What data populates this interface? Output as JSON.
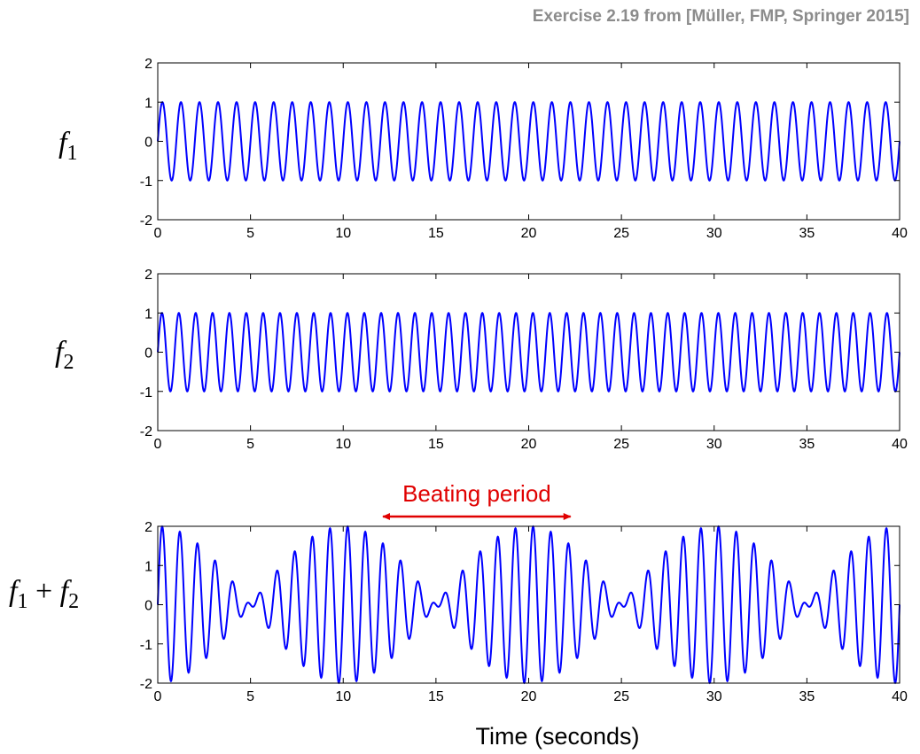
{
  "header": {
    "source": "Exercise 2.19 from [Müller, FMP, Springer 2015]"
  },
  "xlabel": "Time (seconds)",
  "annotation": {
    "text": "Beating period",
    "x_start": 12,
    "x_end": 22.4
  },
  "colors": {
    "line": "#0000ff",
    "annotation": "#e00000"
  },
  "chart_data": [
    {
      "type": "line",
      "name": "f1",
      "label_parts": [
        "f",
        "1"
      ],
      "expr": "sin(2*pi*1.0*t)",
      "frequency": 1.0,
      "amplitude": 1,
      "xlim": [
        0,
        40
      ],
      "ylim": [
        -2,
        2
      ],
      "xticks": [
        0,
        5,
        10,
        15,
        20,
        25,
        30,
        35,
        40
      ],
      "yticks": [
        2,
        1,
        0,
        -1,
        -2
      ],
      "grid": false
    },
    {
      "type": "line",
      "name": "f2",
      "label_parts": [
        "f",
        "2"
      ],
      "expr": "sin(2*pi*1.1*t)",
      "frequency": 1.1,
      "amplitude": 1,
      "xlim": [
        0,
        40
      ],
      "ylim": [
        -2,
        2
      ],
      "xticks": [
        0,
        5,
        10,
        15,
        20,
        25,
        30,
        35,
        40
      ],
      "yticks": [
        2,
        1,
        0,
        -1,
        -2
      ],
      "grid": false
    },
    {
      "type": "line",
      "name": "f1 + f2",
      "label_parts": [
        "f",
        "1",
        " + ",
        "f",
        "2"
      ],
      "expr": "sin(2*pi*1.0*t) + sin(2*pi*1.1*t)",
      "components": [
        1.0,
        1.1
      ],
      "xlim": [
        0,
        40
      ],
      "ylim": [
        -2,
        2
      ],
      "xticks": [
        0,
        5,
        10,
        15,
        20,
        25,
        30,
        35,
        40
      ],
      "yticks": [
        2,
        1,
        0,
        -1,
        -2
      ],
      "grid": false
    }
  ]
}
